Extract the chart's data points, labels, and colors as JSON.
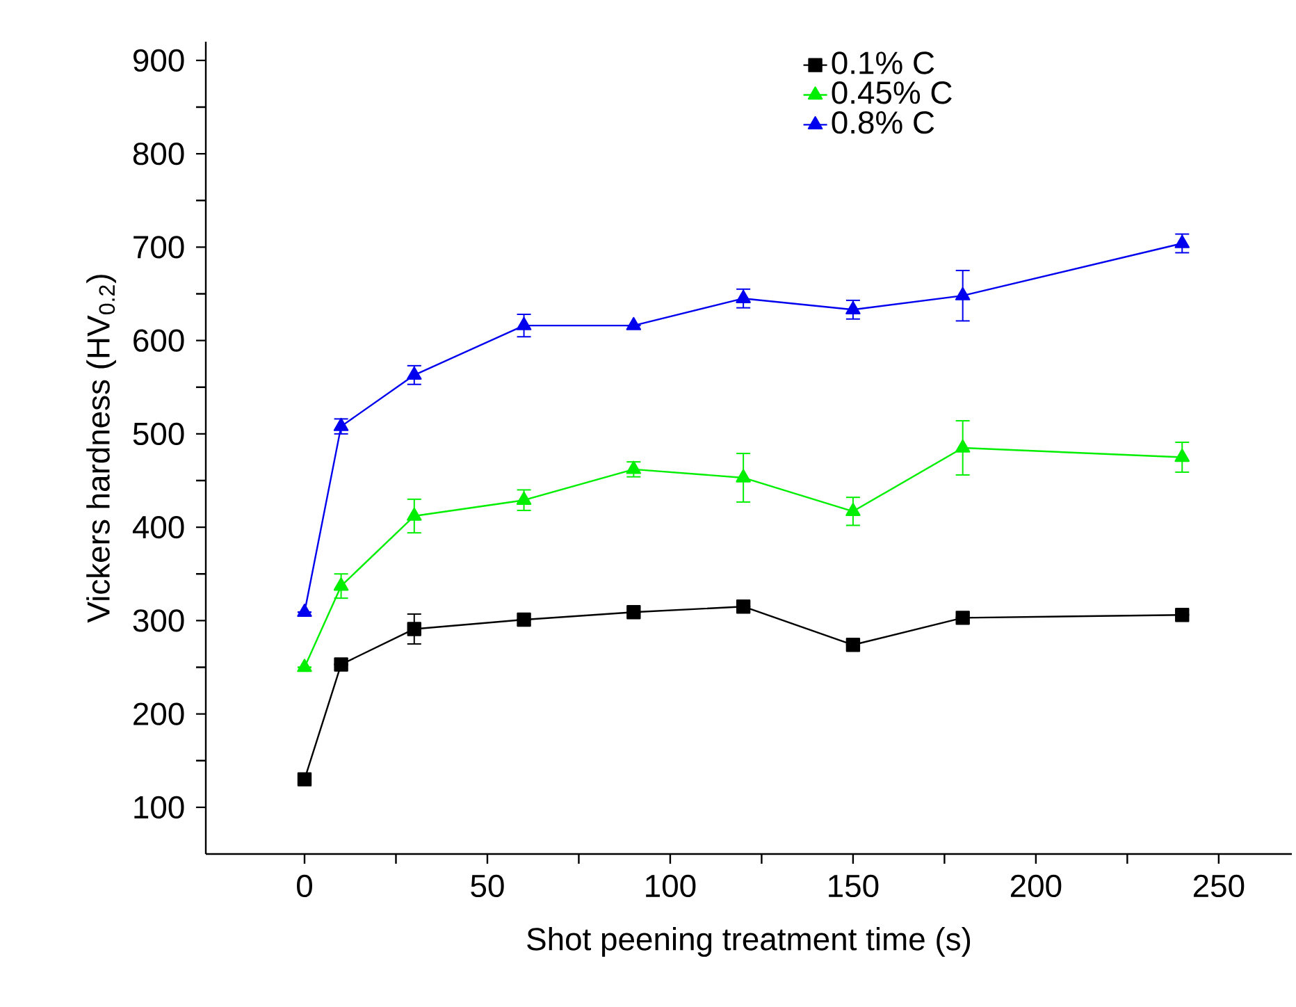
{
  "chart_data": {
    "type": "line",
    "xlabel": "Shot peening treatment time (s)",
    "ylabel": "Vickers hardness (HV$_{0.2}$)",
    "x": [
      0,
      10,
      30,
      60,
      90,
      120,
      150,
      180,
      240
    ],
    "xlim": [
      -27,
      270
    ],
    "ylim": [
      50,
      920
    ],
    "xticks": [
      0,
      50,
      100,
      150,
      200,
      250,
      {
        "value": 25,
        "label": null
      },
      {
        "value": 75,
        "label": null
      },
      {
        "value": 125,
        "label": null
      },
      {
        "value": 175,
        "label": null
      },
      {
        "value": 225,
        "label": null
      }
    ],
    "yticks": [
      100,
      200,
      300,
      400,
      500,
      600,
      700,
      800,
      900,
      {
        "value": 150,
        "label": null
      },
      {
        "value": 250,
        "label": null
      },
      {
        "value": 350,
        "label": null
      },
      {
        "value": 450,
        "label": null
      },
      {
        "value": 550,
        "label": null
      },
      {
        "value": 650,
        "label": null
      },
      {
        "value": 750,
        "label": null
      },
      {
        "value": 850,
        "label": null
      }
    ],
    "grid": false,
    "legend": "top",
    "line_style": "solid",
    "series": [
      {
        "name": "0.1% C",
        "color": "#000000",
        "marker": "square",
        "values": [
          130,
          253,
          291,
          301,
          309,
          315,
          274,
          303,
          306
        ],
        "errors": [
          null,
          null,
          16,
          null,
          null,
          null,
          null,
          null,
          null
        ]
      },
      {
        "name": "0.45% C",
        "color": "#00ee00",
        "marker": "triangle",
        "values": [
          250,
          337,
          412,
          429,
          462,
          453,
          417,
          485,
          475
        ],
        "errors": [
          null,
          13,
          18,
          11,
          8,
          26,
          15,
          29,
          16
        ]
      },
      {
        "name": "0.8% C",
        "color": "#0000ee",
        "marker": "triangle-down",
        "values": [
          309,
          508,
          563,
          616,
          616,
          645,
          633,
          648,
          704
        ],
        "errors": [
          null,
          8,
          10,
          12,
          null,
          10,
          10,
          27,
          10
        ]
      }
    ]
  }
}
